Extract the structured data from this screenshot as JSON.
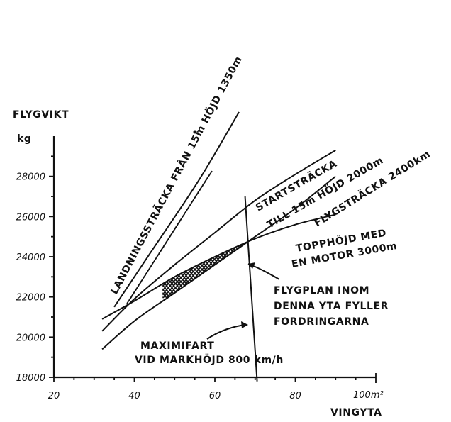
{
  "chart_data": {
    "type": "line",
    "xlabel": "VINGYTA",
    "ylabel": "FLYGVIKT",
    "yunit": "kg",
    "xunit_label": "100m²",
    "xlim": [
      20,
      100
    ],
    "ylim": [
      18000,
      30000
    ],
    "xticks": [
      {
        "value": 20,
        "label": "20"
      },
      {
        "value": 40,
        "label": "40"
      },
      {
        "value": 60,
        "label": "60"
      },
      {
        "value": 80,
        "label": "80"
      }
    ],
    "yticks": [
      {
        "value": 18000,
        "label": "18000"
      },
      {
        "value": 20000,
        "label": "20000"
      },
      {
        "value": 22000,
        "label": "22000"
      },
      {
        "value": 24000,
        "label": "24000"
      },
      {
        "value": 26000,
        "label": "26000"
      },
      {
        "value": 28000,
        "label": "28000"
      }
    ],
    "grid": false,
    "series": [
      {
        "name": "LANDNINGSSTRÄCKA FRÅN 15m HÖJD 1350m",
        "line1": "LANDNINGSSTRÄCKA FRÅN 15m HÖJD 1350m",
        "x": [
          35,
          44,
          56,
          66
        ],
        "y": [
          21500,
          24200,
          27800,
          31200
        ]
      },
      {
        "name": "STARTSTRÄCKA TILL 15m HÖJD 2000m",
        "line1": "STARTSTRÄCKA",
        "line2": "TILL 15m HÖJD 2000m",
        "x": [
          32,
          40,
          50,
          60,
          70,
          80,
          90
        ],
        "y": [
          20300,
          21900,
          23600,
          25200,
          26800,
          28100,
          29300
        ]
      },
      {
        "name": "FLYGSTRÄCKA 2400km",
        "line1": "FLYGSTRÄCKA 2400km",
        "x": [
          32,
          40,
          50,
          60,
          70,
          80,
          90
        ],
        "y": [
          19400,
          20800,
          22200,
          23600,
          25000,
          26400,
          28000
        ]
      },
      {
        "name": "TOPPHÖJD MED EN MOTOR 3000m",
        "line1": "TOPPHÖJD MED",
        "line2": "EN MOTOR 3000m",
        "x": [
          32,
          40,
          50,
          60,
          70,
          80,
          90
        ],
        "y": [
          20900,
          21800,
          23000,
          24000,
          24900,
          25600,
          26100
        ]
      },
      {
        "name": "MAXIMIFART VID MARKHÖJD 800 km/h",
        "line1": "MAXIMIFART",
        "line2": "VID MARKHÖJD 800 km/h",
        "x": [
          67.5,
          70.5
        ],
        "y": [
          27000,
          17800
        ]
      }
    ],
    "annotations": [
      {
        "line1": "FLYGPLAN INOM",
        "line2": "DENNA YTA FYLLER",
        "line3": "FORDRINGARNA"
      }
    ]
  }
}
